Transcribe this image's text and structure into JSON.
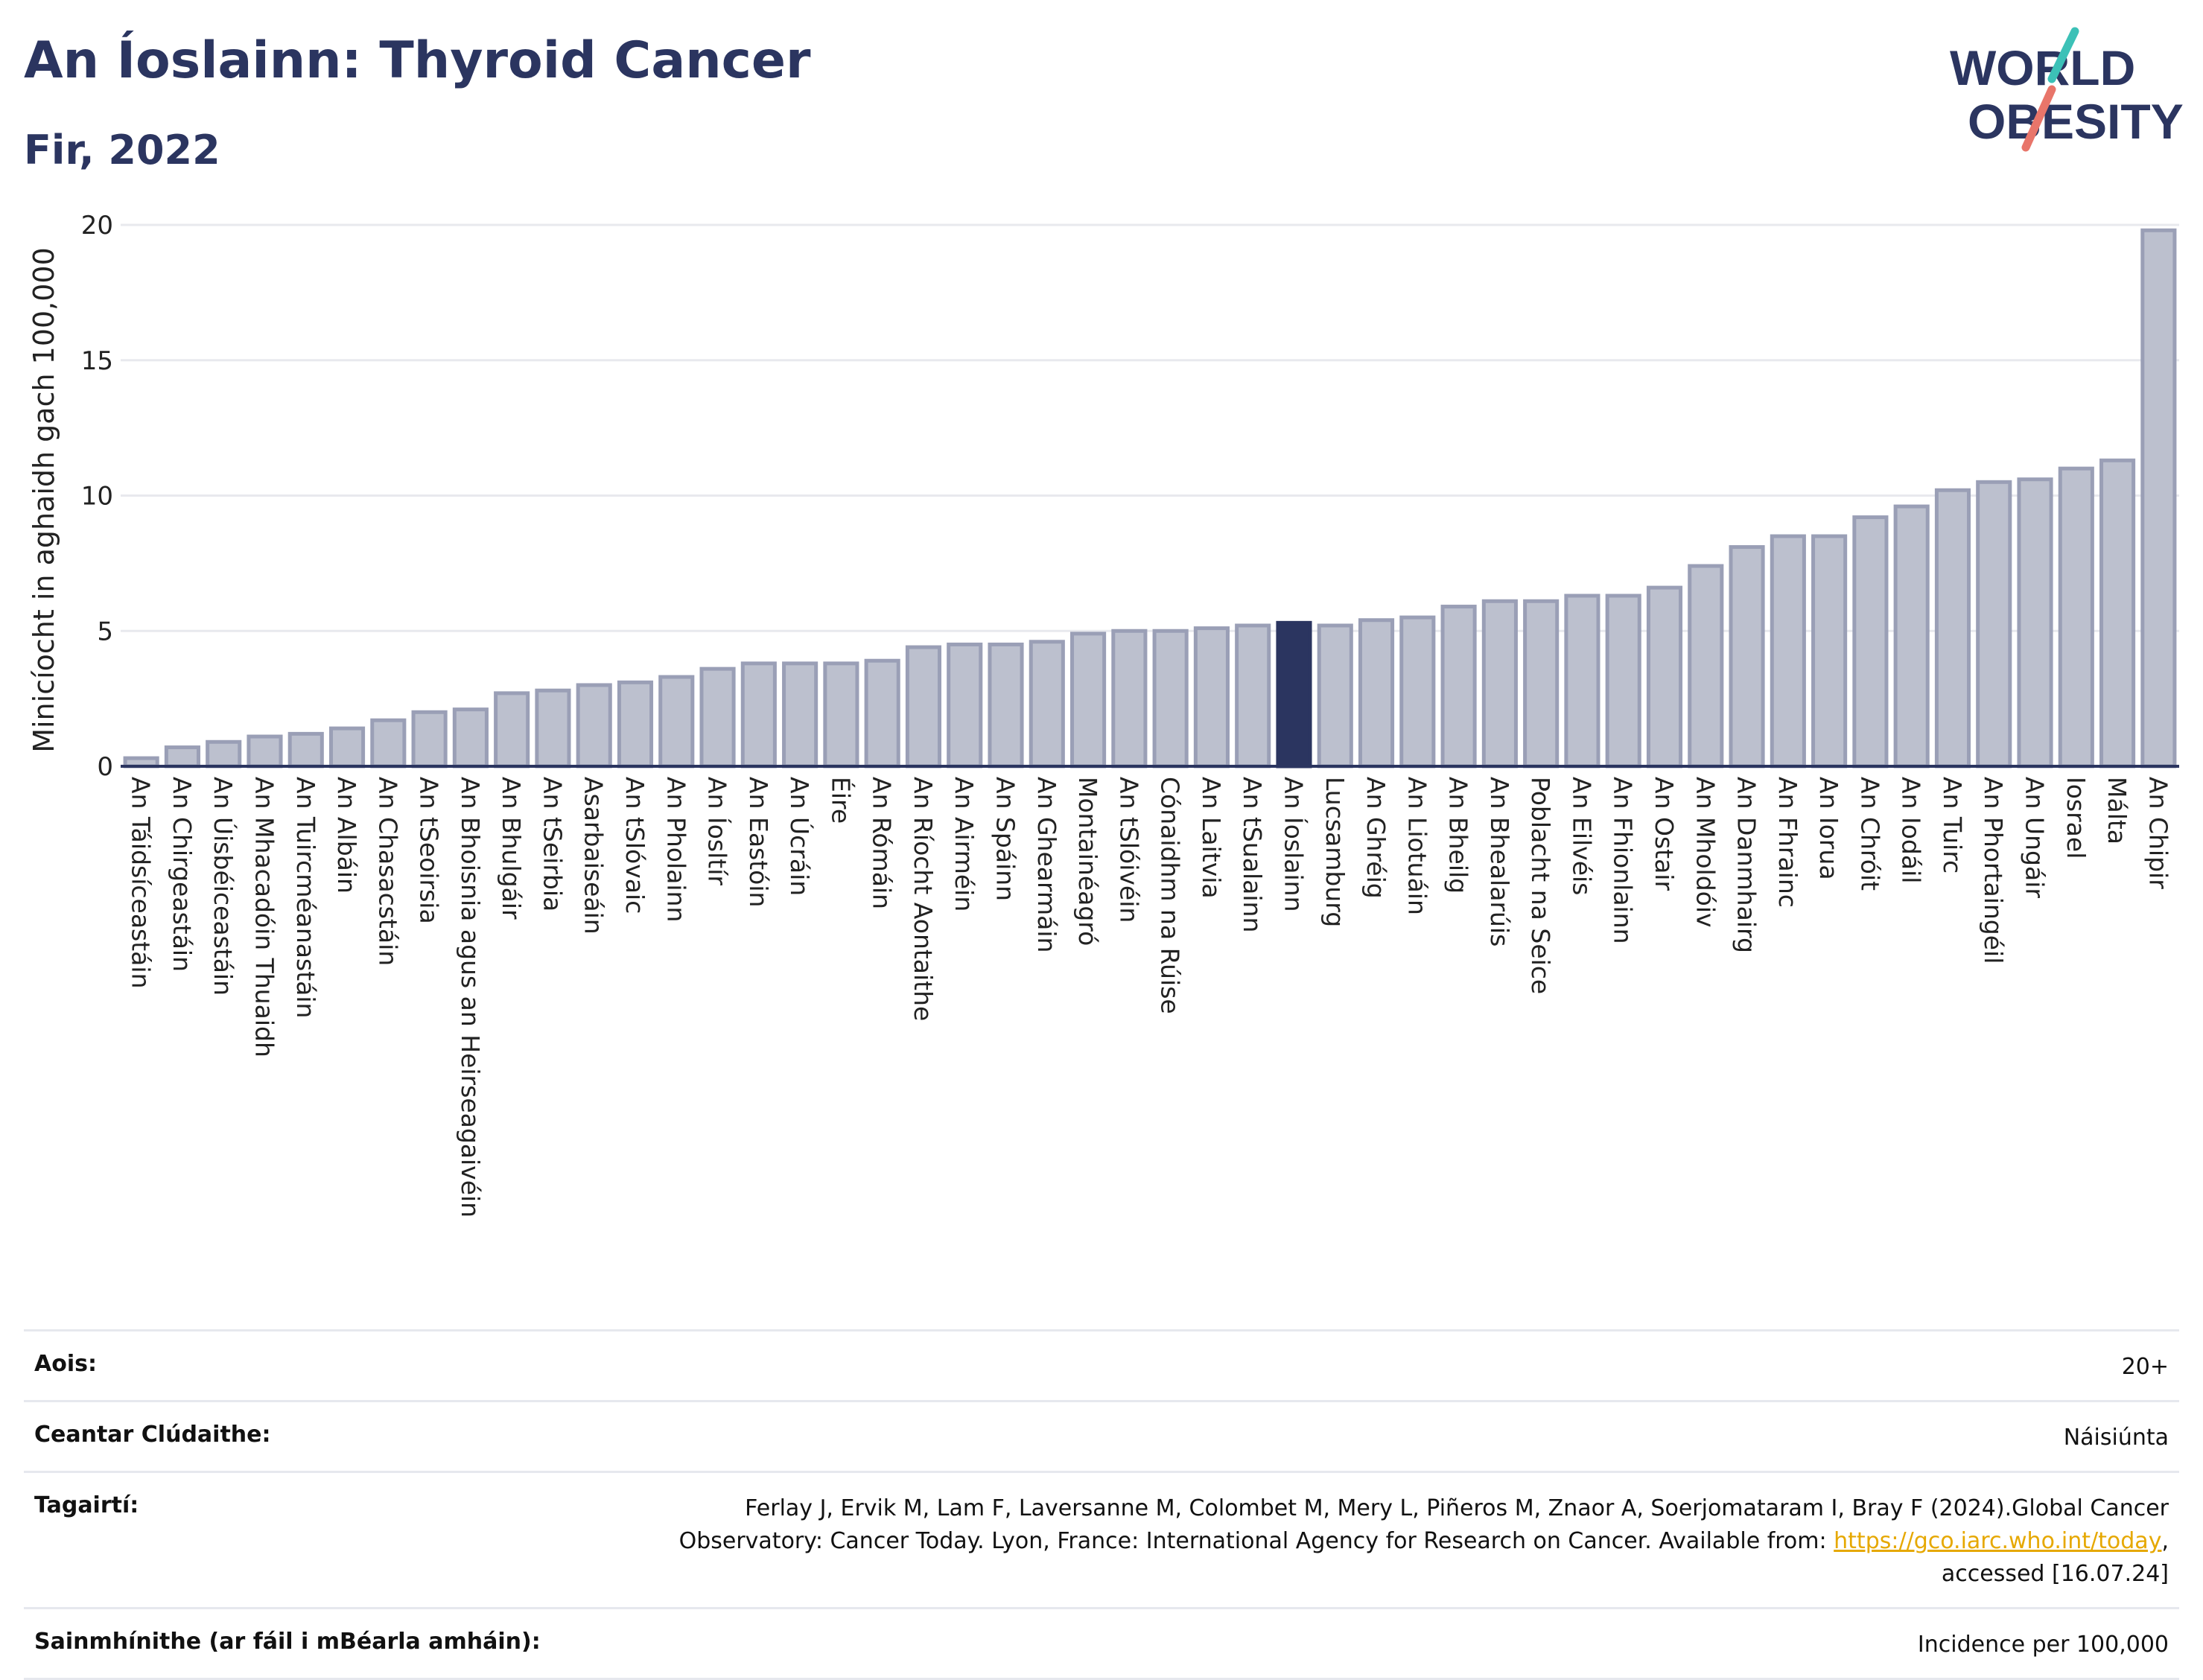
{
  "header": {
    "title": "An Íoslainn: Thyroid Cancer",
    "subtitle": "Fir, 2022"
  },
  "logo": {
    "line1": "WORLD",
    "line2": "OBESITY",
    "accent_teal": "#3cc1b7",
    "accent_coral": "#e8756a"
  },
  "chart_data": {
    "type": "bar",
    "title": "An Íoslainn: Thyroid Cancer",
    "subtitle": "Fir, 2022",
    "ylabel": "Minicíocht in aghaidh gach 100,000",
    "xlabel": "",
    "ylim": [
      0,
      20
    ],
    "yticks": [
      0,
      5,
      10,
      15,
      20
    ],
    "grid": true,
    "highlight": "An Íoslainn",
    "colors": {
      "bar": "#bcc0ce",
      "bar_edge": "#9a9fb6",
      "highlight": "#2b3560",
      "grid": "#e8e9ee",
      "axis": "#2b3560"
    },
    "categories": [
      "An Táidsíceastáin",
      "An Chirgeastáin",
      "An Úisbéiceastáin",
      "An Mhacadóin Thuaidh",
      "An Tuircméanastáin",
      "An Albáin",
      "An Chasacstáin",
      "An tSeoirsia",
      "An Bhoisnia agus an Heirseagaivéin",
      "An Bhulgáir",
      "An tSeirbia",
      "Asarbaiseáin",
      "An tSlóvaic",
      "An Pholainn",
      "An Íosltír",
      "An Eastóin",
      "An Úcráin",
      "Éire",
      "An Rómáin",
      "An Ríocht Aontaithe",
      "An Airméin",
      "An Spáinn",
      "An Ghearmáin",
      "Montainéagró",
      "An tSlóivéin",
      "Cónaidhm na Rúise",
      "An Laitvia",
      "An tSualainn",
      "An Íoslainn",
      "Lucsamburg",
      "An Ghréig",
      "An Liotuáin",
      "An Bheilg",
      "An Bhealarúis",
      "Poblacht na Seice",
      "An Eilvéis",
      "An Fhionlainn",
      "An Ostair",
      "An Mholdóiv",
      "An Danmhairg",
      "An Fhrainc",
      "An Iorua",
      "An Chróit",
      "An Iodáil",
      "An Tuirc",
      "An Phortaingéil",
      "An Ungáir",
      "Iosrael",
      "Málta",
      "An Chipir"
    ],
    "values": [
      0.3,
      0.7,
      0.9,
      1.1,
      1.2,
      1.4,
      1.7,
      2.0,
      2.1,
      2.7,
      2.8,
      3.0,
      3.1,
      3.3,
      3.6,
      3.8,
      3.8,
      3.8,
      3.9,
      4.4,
      4.5,
      4.5,
      4.6,
      4.9,
      5.0,
      5.0,
      5.1,
      5.2,
      5.3,
      5.2,
      5.4,
      5.5,
      5.9,
      6.1,
      6.1,
      6.3,
      6.3,
      6.6,
      7.4,
      8.1,
      8.5,
      8.5,
      9.2,
      9.6,
      10.2,
      10.5,
      10.6,
      11.0,
      11.3,
      19.8
    ]
  },
  "info": [
    {
      "label": "Aois:",
      "value": "20+"
    },
    {
      "label": "Ceantar Clúdaithe:",
      "value": "Náisiúnta"
    },
    {
      "label": "Tagairtí:",
      "value_pre": "Ferlay J, Ervik M, Lam F, Laversanne M, Colombet M, Mery L, Piñeros M, Znaor A, Soerjomataram I, Bray F (2024).Global Cancer Observatory: Cancer Today. Lyon, France: International Agency for Research on Cancer. Available from: ",
      "link": "https://gco.iarc.who.int/today",
      "value_post": ", accessed [16.07.24]"
    },
    {
      "label": "Sainmhínithe (ar fáil i mBéarla amháin):",
      "value": "Incidence per 100,000"
    }
  ]
}
